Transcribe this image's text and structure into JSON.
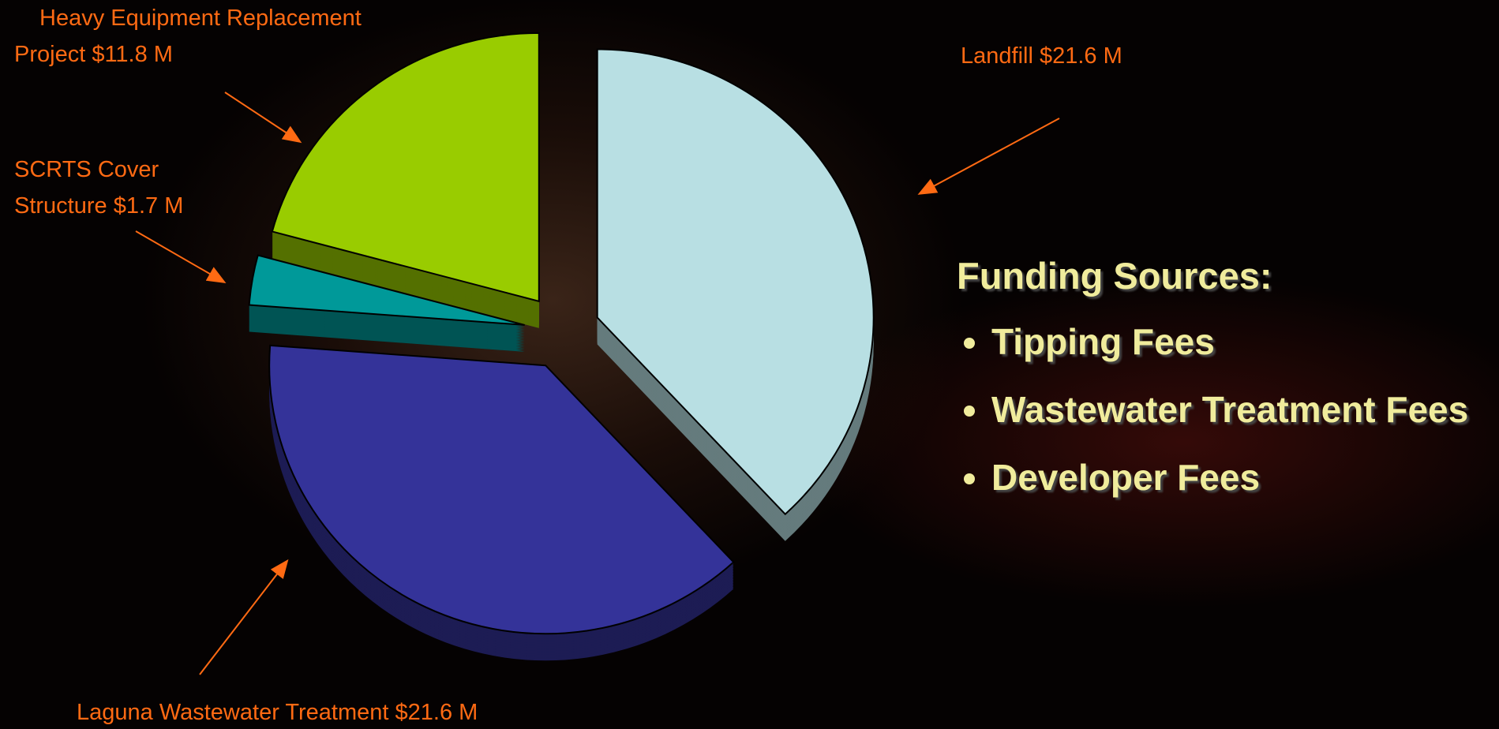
{
  "chart_data": {
    "type": "pie",
    "categories": [
      "Landfill",
      "Laguna Wastewater Treatment",
      "SCRTS Cover Structure",
      "Heavy Equipment Replacement Project"
    ],
    "values": [
      21.6,
      21.6,
      1.7,
      11.8
    ],
    "value_labels": [
      "$21.6 M",
      "$21.6 M",
      "$1.7 M",
      "$11.8 M"
    ],
    "colors": [
      "#b8dfe3",
      "#343399",
      "#009999",
      "#99cc00"
    ],
    "side_text": {
      "heading": "Funding Sources:",
      "items": [
        "Tipping Fees",
        "Wastewater Treatment Fees",
        "Developer Fees"
      ]
    }
  }
}
